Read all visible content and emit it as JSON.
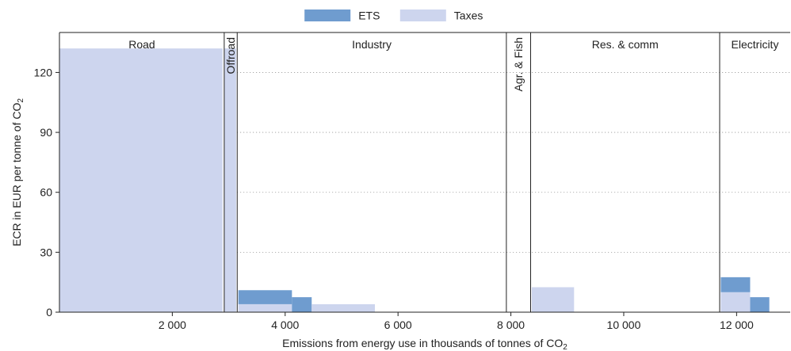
{
  "chart_data": {
    "type": "bar",
    "xlabel": "Emissions from energy use in thousands of tonnes of CO",
    "xlabel_sub": "2",
    "ylabel": "ECR in EUR per tonne of CO",
    "ylabel_sub": "2",
    "xlim": [
      0,
      12950
    ],
    "ylim": [
      0,
      140
    ],
    "x_ticks": [
      {
        "value": 2000,
        "label": "2 000"
      },
      {
        "value": 4000,
        "label": "4 000"
      },
      {
        "value": 6000,
        "label": "6 000"
      },
      {
        "value": 8000,
        "label": "8 000"
      },
      {
        "value": 10000,
        "label": "10 000"
      },
      {
        "value": 12000,
        "label": "12 000"
      }
    ],
    "y_ticks": [
      {
        "value": 0,
        "label": "0"
      },
      {
        "value": 30,
        "label": "30"
      },
      {
        "value": 60,
        "label": "60"
      },
      {
        "value": 90,
        "label": "90"
      },
      {
        "value": 120,
        "label": "120"
      }
    ],
    "grid": "horizontal-dotted",
    "legend_position": "top-center",
    "series": [
      {
        "name": "ETS",
        "color": "#6f9ccf"
      },
      {
        "name": "Taxes",
        "color": "#cdd5ee"
      }
    ],
    "sectors": [
      {
        "name": "Road",
        "start": 0,
        "end": 2920,
        "rotated": false
      },
      {
        "name": "Offroad",
        "start": 2920,
        "end": 3150,
        "rotated": true
      },
      {
        "name": "Industry",
        "start": 3150,
        "end": 7920,
        "rotated": false
      },
      {
        "name": "Agr. & Fish",
        "start": 7920,
        "end": 8350,
        "rotated": true
      },
      {
        "name": "Res. & comm",
        "start": 8350,
        "end": 11700,
        "rotated": false
      },
      {
        "name": "Electricity",
        "start": 11700,
        "end": 12950,
        "rotated": false
      }
    ],
    "blocks": [
      {
        "x0": 0,
        "x1": 2890,
        "taxes": 132,
        "ets": 0
      },
      {
        "x0": 2920,
        "x1": 3130,
        "taxes": 132,
        "ets": 0
      },
      {
        "x0": 3170,
        "x1": 4120,
        "taxes": 4,
        "ets": 7
      },
      {
        "x0": 4120,
        "x1": 4470,
        "taxes": 0,
        "ets": 7.5
      },
      {
        "x0": 4470,
        "x1": 5590,
        "taxes": 4,
        "ets": 0
      },
      {
        "x0": 8370,
        "x1": 9120,
        "taxes": 12.5,
        "ets": 0
      },
      {
        "x0": 11720,
        "x1": 12240,
        "taxes": 10,
        "ets": 7.5
      },
      {
        "x0": 12240,
        "x1": 12580,
        "taxes": 0,
        "ets": 7.5
      }
    ]
  }
}
